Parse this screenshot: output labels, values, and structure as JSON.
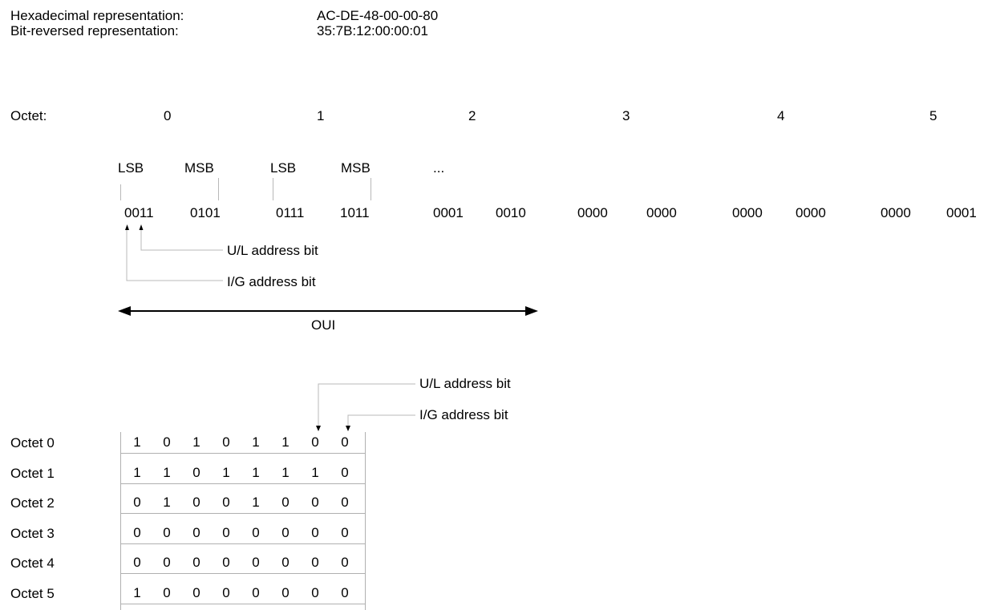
{
  "header": {
    "hex_label": "Hexadecimal representation:",
    "hex_value": "AC-DE-48-00-00-80",
    "bitrev_label": "Bit-reversed representation:",
    "bitrev_value": "35:7B:12:00:00:01"
  },
  "octet_line": {
    "label": "Octet:",
    "numbers": [
      "0",
      "1",
      "2",
      "3",
      "4",
      "5"
    ]
  },
  "sig_labels": {
    "lsb_0": "LSB",
    "msb_0": "MSB",
    "lsb_1": "LSB",
    "msb_1": "MSB",
    "ellipsis": "..."
  },
  "bit_groups": [
    [
      "0011",
      "0101"
    ],
    [
      "0111",
      "1011"
    ],
    [
      "0001",
      "0010"
    ],
    [
      "0000",
      "0000"
    ],
    [
      "0000",
      "0000"
    ],
    [
      "0000",
      "0001"
    ]
  ],
  "callouts": {
    "ul_bit": "U/L address bit",
    "ig_bit": "I/G address bit",
    "oui": "OUI"
  },
  "table": {
    "ul_bit": "U/L address bit",
    "ig_bit": "I/G address bit",
    "rows": [
      {
        "label": "Octet 0",
        "bits": [
          "1",
          "0",
          "1",
          "0",
          "1",
          "1",
          "0",
          "0"
        ]
      },
      {
        "label": "Octet 1",
        "bits": [
          "1",
          "1",
          "0",
          "1",
          "1",
          "1",
          "1",
          "0"
        ]
      },
      {
        "label": "Octet 2",
        "bits": [
          "0",
          "1",
          "0",
          "0",
          "1",
          "0",
          "0",
          "0"
        ]
      },
      {
        "label": "Octet 3",
        "bits": [
          "0",
          "0",
          "0",
          "0",
          "0",
          "0",
          "0",
          "0"
        ]
      },
      {
        "label": "Octet 4",
        "bits": [
          "0",
          "0",
          "0",
          "0",
          "0",
          "0",
          "0",
          "0"
        ]
      },
      {
        "label": "Octet 5",
        "bits": [
          "1",
          "0",
          "0",
          "0",
          "0",
          "0",
          "0",
          "0"
        ]
      }
    ]
  }
}
